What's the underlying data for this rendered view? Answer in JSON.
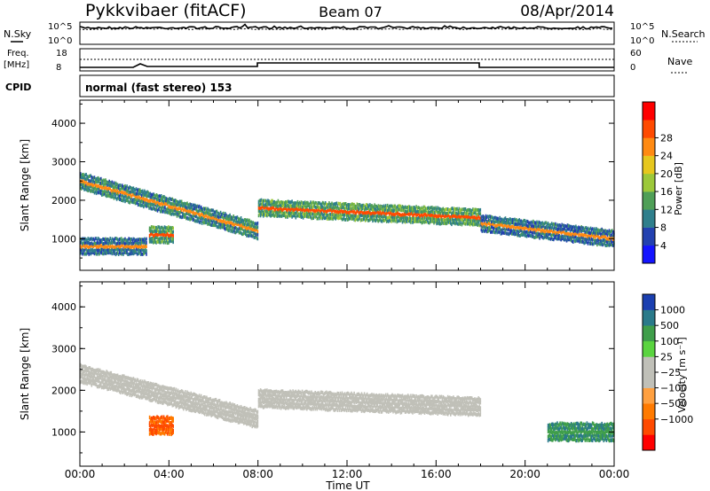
{
  "header": {
    "station": "Pykkvibaer (fitACF)",
    "beam": "Beam 07",
    "date": "08/Apr/2014"
  },
  "status_panels": {
    "nsky": {
      "label": "N.Sky",
      "ticks": [
        "10^5",
        "10^0"
      ]
    },
    "nsearch": {
      "label": "N.Search",
      "ticks": [
        "10^5",
        "10^0"
      ]
    },
    "freq": {
      "label_line1": "Freq.",
      "label_line2": "[MHz]",
      "ticks": [
        "18",
        "8"
      ]
    },
    "nave": {
      "label": "Nave",
      "ticks": [
        "60",
        "0"
      ]
    },
    "cpid": {
      "label": "CPID",
      "text": "normal (fast stereo) 153"
    }
  },
  "chart_data": [
    {
      "type": "heatmap",
      "title": "",
      "xlabel": "Time UT",
      "ylabel": "Slant Range [km]",
      "xlim": [
        0,
        24
      ],
      "ylim": [
        180,
        4600
      ],
      "x_tick_labels": [
        "00:00",
        "04:00",
        "08:00",
        "12:00",
        "16:00",
        "20:00",
        "00:00"
      ],
      "y_tick_labels": [
        "1000",
        "2000",
        "3000",
        "4000"
      ],
      "colorbar": {
        "label": "Power [dB]",
        "ticks": [
          "4",
          "8",
          "12",
          "16",
          "20",
          "24",
          "28"
        ],
        "colors": [
          "#1414ff",
          "#2341b0",
          "#2f7f8c",
          "#4f9f57",
          "#9cc83a",
          "#e6c71e",
          "#ff8a12",
          "#ff4a00",
          "#ff0000"
        ]
      },
      "echo_bands": [
        {
          "t_start": 0.0,
          "t_end": 8.0,
          "range_start": 2500,
          "range_end": 1200,
          "value": 24
        },
        {
          "t_start": 8.0,
          "t_end": 18.0,
          "range_start": 1800,
          "range_end": 1550,
          "value": 26
        },
        {
          "t_start": 18.0,
          "t_end": 24.0,
          "range_start": 1400,
          "range_end": 1000,
          "value": 22
        },
        {
          "t_start": 0.0,
          "t_end": 3.0,
          "range_start": 800,
          "range_end": 800,
          "value": 22
        },
        {
          "t_start": 3.1,
          "t_end": 4.2,
          "range_start": 1100,
          "range_end": 1100,
          "value": 26
        }
      ]
    },
    {
      "type": "heatmap",
      "title": "",
      "xlabel": "Time UT",
      "ylabel": "Slant Range [km]",
      "xlim": [
        0,
        24
      ],
      "ylim": [
        180,
        4600
      ],
      "x_tick_labels": [
        "00:00",
        "04:00",
        "08:00",
        "12:00",
        "16:00",
        "20:00",
        "00:00"
      ],
      "y_tick_labels": [
        "1000",
        "2000",
        "3000",
        "4000"
      ],
      "colorbar": {
        "label": "Velocity [m s⁻¹]",
        "ticks": [
          "1000",
          "500",
          "100",
          "25",
          "−25",
          "−100",
          "−500",
          "−1000"
        ],
        "colors": [
          "#1a3fb0",
          "#2a7a8a",
          "#3f9e4a",
          "#5ad43f",
          "#c0c0b8",
          "#c0c0b8",
          "#ffa040",
          "#ff7a00",
          "#ff4a00",
          "#ff0000"
        ]
      },
      "echo_bands": [
        {
          "t_start": 0.0,
          "t_end": 8.0,
          "range_start": 2400,
          "range_end": 1300,
          "value": 0
        },
        {
          "t_start": 8.0,
          "t_end": 18.0,
          "range_start": 1800,
          "range_end": 1600,
          "value": 0
        },
        {
          "t_start": 3.1,
          "t_end": 4.2,
          "range_start": 1150,
          "range_end": 1150,
          "value": -300
        },
        {
          "t_start": 21.0,
          "t_end": 24.0,
          "range_start": 1000,
          "range_end": 1000,
          "value": 300
        }
      ]
    }
  ]
}
